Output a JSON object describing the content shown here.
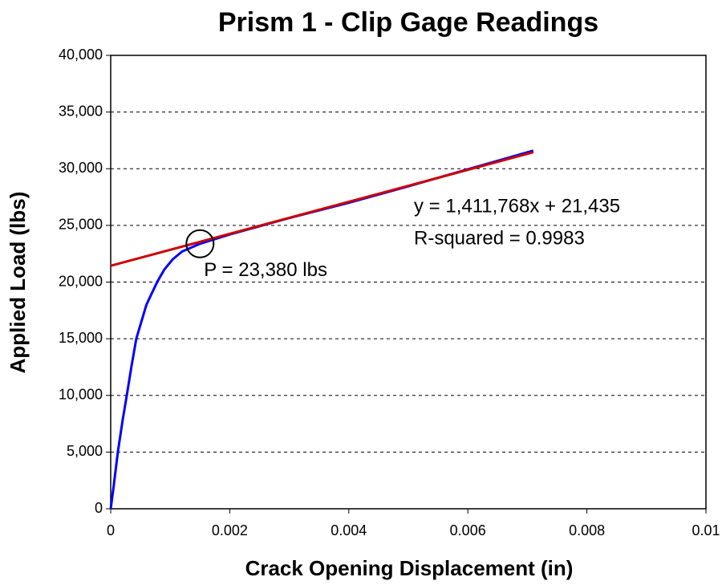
{
  "chart_data": {
    "type": "line",
    "title": "Prism 1 - Clip Gage Readings",
    "xlabel": "Crack Opening Displacement (in)",
    "ylabel": "Applied Load (lbs)",
    "xlim": [
      0,
      0.01
    ],
    "ylim": [
      0,
      40000
    ],
    "xticks": [
      0,
      0.002,
      0.004,
      0.006,
      0.008,
      0.01
    ],
    "yticks": [
      0,
      {
        "value": 5000,
        "label": "5,000"
      },
      {
        "value": 10000,
        "label": "10,000"
      },
      {
        "value": 15000,
        "label": "15,000"
      },
      {
        "value": 20000,
        "label": "20,000"
      },
      {
        "value": 25000,
        "label": "25,000"
      },
      {
        "value": 30000,
        "label": "30,000"
      },
      {
        "value": 35000,
        "label": "35,000"
      },
      {
        "value": 40000,
        "label": "40,000"
      }
    ],
    "grid": true,
    "series": [
      {
        "color": "#0000ff",
        "x": [
          0,
          5e-05,
          0.00012,
          0.0002,
          0.00027,
          0.00035,
          0.00043,
          0.0006,
          0.00078,
          0.0009,
          0.00104,
          0.0012,
          0.0015,
          0.002,
          0.003,
          0.004,
          0.005,
          0.006,
          0.0071
        ],
        "values": [
          0,
          2000,
          5000,
          7800,
          10000,
          12600,
          15000,
          18000,
          20000,
          21100,
          22000,
          22700,
          23380,
          24200,
          25650,
          27000,
          28450,
          29950,
          31600
        ]
      },
      {
        "color": "#cc0000",
        "x": [
          0,
          0.0071
        ],
        "values": [
          21435,
          31459
        ]
      }
    ],
    "marker": {
      "x": 0.0015,
      "y": 23380,
      "label": "P = 23,380 lbs"
    },
    "annotations": [
      "y = 1,411,768x + 21,435",
      "R-squared = 0.9983"
    ]
  }
}
